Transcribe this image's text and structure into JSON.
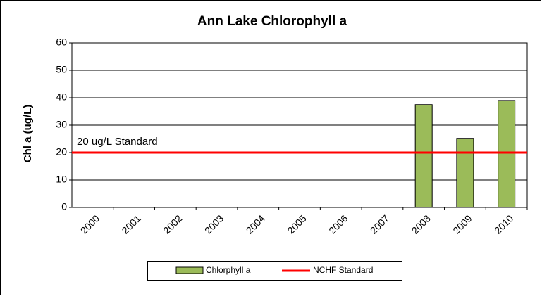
{
  "chart_data": {
    "type": "bar",
    "title": "Ann Lake Chlorophyll a",
    "y_label": "Chl a (ug/L)",
    "categories": [
      "2000",
      "2001",
      "2002",
      "2003",
      "2004",
      "2005",
      "2006",
      "2007",
      "2008",
      "2009",
      "2010"
    ],
    "series": [
      {
        "name": "Chlorphyll a",
        "color": "#9bbb59",
        "values": [
          null,
          null,
          null,
          null,
          null,
          null,
          null,
          null,
          37.5,
          25.2,
          39
        ]
      }
    ],
    "reference_line": {
      "name": "NCHF Standard",
      "value": 20,
      "label": "20 ug/L Standard",
      "color": "#ff0000"
    },
    "ylim": [
      0,
      60
    ],
    "yticks": [
      0,
      10,
      20,
      30,
      40,
      50,
      60
    ],
    "grid": true,
    "legend": "bottom"
  }
}
